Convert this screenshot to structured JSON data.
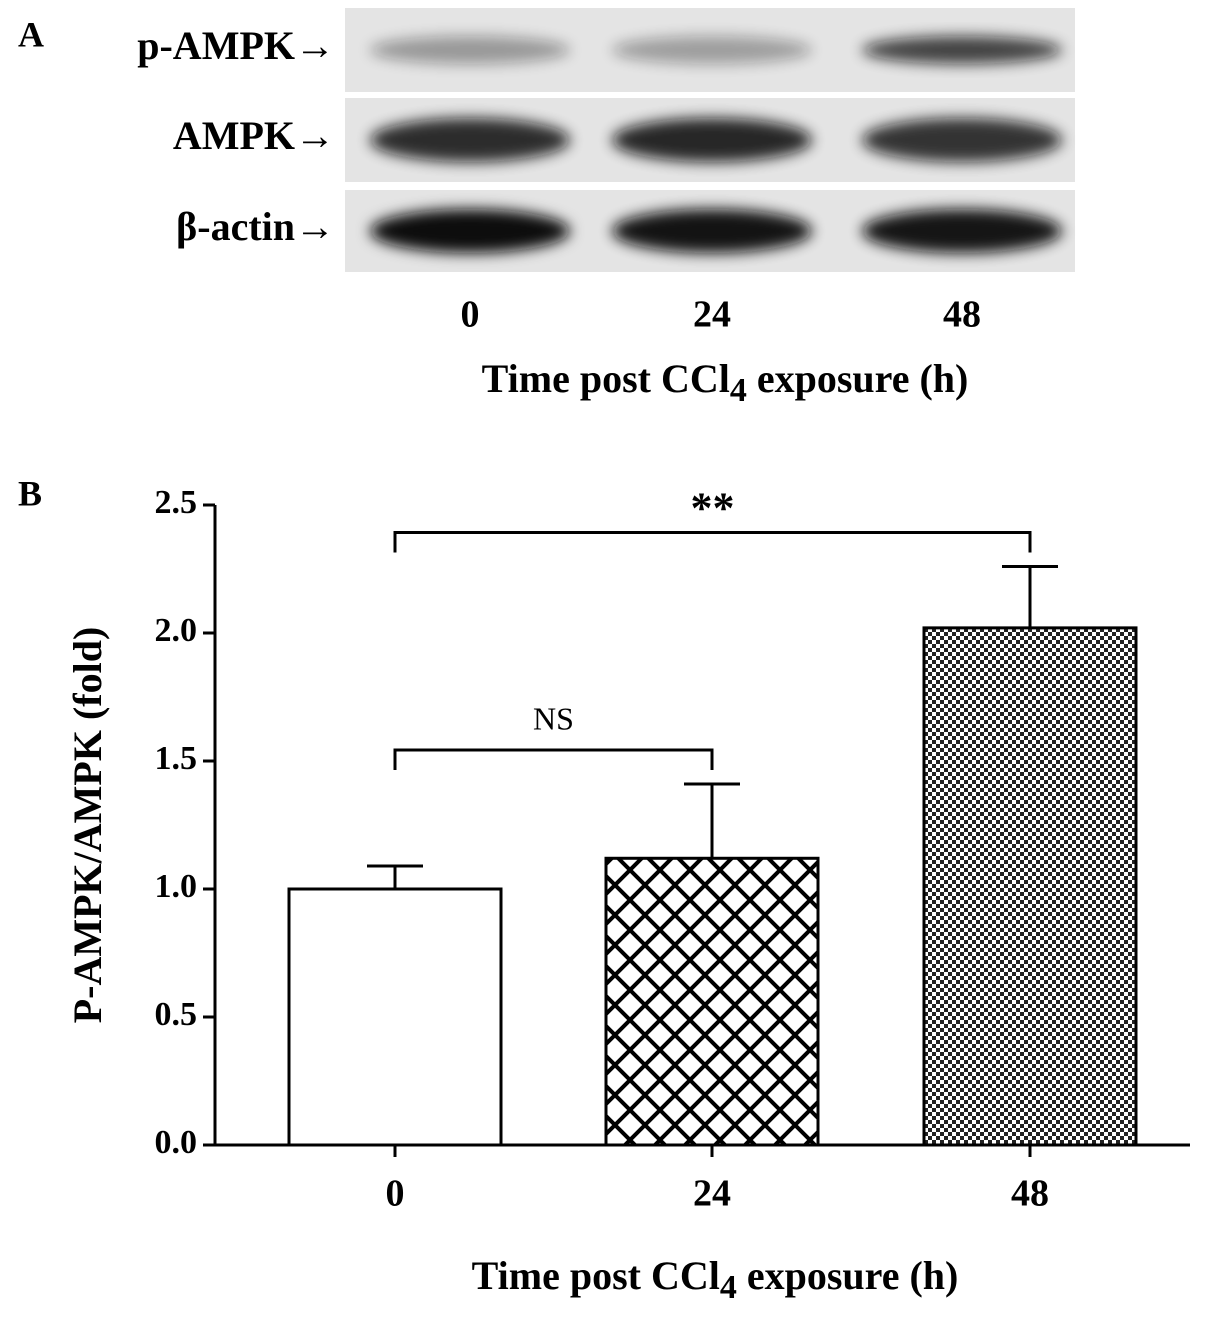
{
  "panel_a": {
    "label": "A",
    "rows": [
      "p-AMPK→",
      "AMPK→",
      "β-actin→"
    ],
    "lanes": [
      "0",
      "24",
      "48"
    ],
    "xlabel": [
      "Time post CCl",
      "4",
      " exposure (h)"
    ]
  },
  "chart_data": {
    "type": "bar",
    "panel_label": "B",
    "categories": [
      "0",
      "24",
      "48"
    ],
    "values": [
      1.0,
      1.12,
      2.02
    ],
    "errors": [
      0.09,
      0.29,
      0.24
    ],
    "patterns": [
      "none",
      "crosshatch",
      "checker"
    ],
    "color": "#000000",
    "ylim": [
      0,
      2.5
    ],
    "yticks": [
      {
        "value": 0,
        "label": "0.0"
      },
      {
        "value": 0.5,
        "label": "0.5"
      },
      {
        "value": 1,
        "label": "1.0"
      },
      {
        "value": 1.5,
        "label": "1.5"
      },
      {
        "value": 2,
        "label": "2.0"
      },
      {
        "value": 2.5,
        "label": "2.5"
      }
    ],
    "ylabel": "P-AMPK/AMPK (fold)",
    "xlabel": [
      "Time post CCl",
      "4",
      " exposure (h)"
    ],
    "comparisons": [
      {
        "groups": [
          "0",
          "24"
        ],
        "label": "NS"
      },
      {
        "groups": [
          "0",
          "48"
        ],
        "label": "**"
      }
    ]
  }
}
